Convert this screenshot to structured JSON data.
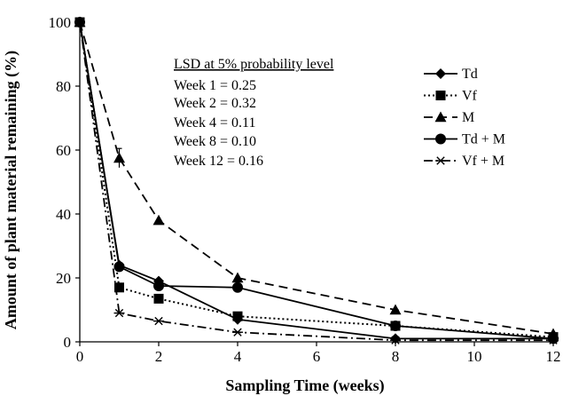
{
  "chart_data": {
    "type": "line",
    "title": "",
    "xlabel": "Sampling Time (weeks)",
    "ylabel": "Amount of plant material remaining (%)",
    "xlim": [
      0,
      12
    ],
    "ylim": [
      0,
      100
    ],
    "x_ticks": [
      "0",
      "2",
      "4",
      "6",
      "8",
      "10",
      "12"
    ],
    "y_ticks": [
      "0",
      "20",
      "40",
      "60",
      "80",
      "100"
    ],
    "grid": false,
    "legend_position": "top-right",
    "annotation": {
      "heading": "LSD at 5% probability level",
      "lines": [
        "Week 1 = 0.25",
        "Week 2 = 0.32",
        "Week 4 = 0.11",
        "Week 8 = 0.10",
        "Week 12 = 0.16"
      ]
    },
    "series": [
      {
        "name": "Td",
        "marker": "diamond",
        "line_style": "solid",
        "x": [
          0,
          1,
          2,
          4,
          8,
          12
        ],
        "y": [
          100,
          24,
          19,
          7,
          1,
          1
        ]
      },
      {
        "name": "Vf",
        "marker": "square",
        "line_style": "dotted",
        "x": [
          0,
          1,
          2,
          4,
          8,
          12
        ],
        "y": [
          100,
          17,
          13.5,
          8,
          5,
          1.5
        ]
      },
      {
        "name": "M",
        "marker": "triangle",
        "line_style": "dashed",
        "x": [
          0,
          1,
          2,
          4,
          8,
          12
        ],
        "y": [
          100,
          57.5,
          38,
          20,
          10,
          2.5
        ]
      },
      {
        "name": "Td + M",
        "marker": "circle",
        "line_style": "solid",
        "x": [
          0,
          1,
          2,
          4,
          8,
          12
        ],
        "y": [
          100,
          23.5,
          17.5,
          17,
          5,
          1
        ]
      },
      {
        "name": "Vf + M",
        "marker": "asterisk",
        "line_style": "dashdot",
        "x": [
          0,
          1,
          2,
          4,
          8,
          12
        ],
        "y": [
          100,
          9,
          6.5,
          3,
          0.5,
          0.5
        ]
      }
    ],
    "error_bars": [
      {
        "series": "M",
        "x": 1,
        "y": 57.5,
        "err": 3
      }
    ]
  }
}
